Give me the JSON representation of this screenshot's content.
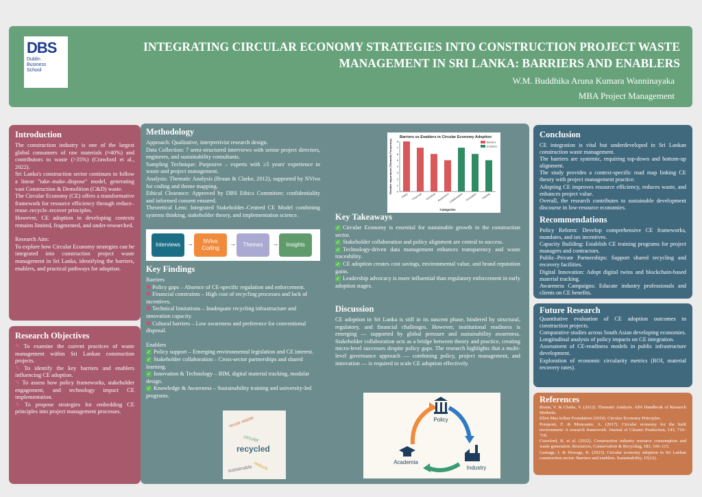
{
  "header": {
    "logo_text": "DBS",
    "logo_sub": [
      "Dublin",
      "Business",
      "School"
    ],
    "title_line1": "INTEGRATING CIRCULAR ECONOMY STRATEGIES INTO CONSTRUCTION PROJECT WASTE",
    "title_line2": "MANAGEMENT IN SRI LANKA: BARRIERS AND ENABLERS",
    "author": "W.M. Buddhika Aruna Kumara Wanninayaka",
    "degree": "MBA Project Management"
  },
  "introduction": {
    "title": "Introduction",
    "paragraphs": [
      "The construction industry is one of the largest global consumers of raw materials (≈40%) and contributors to waste (>35%) (Crawford et al., 2022).",
      "Sri Lanka's construction sector continues to follow a linear \"take–make–dispose\" model, generating vast Construction & Demolition (C&D) waste.",
      "The Circular Economy (CE) offers a transformative framework for resource efficiency through reduce–reuse–recycle–recover principles.",
      "However, CE adoption in developing contexts remains limited, fragmented, and under-researched."
    ],
    "aim_label": "Research Aim:",
    "aim": "To explore how Circular Economy strategies can be integrated into construction project waste management in Sri Lanka, identifying the barriers, enablers, and practical pathways for adoption."
  },
  "objectives": {
    "title": "Research Objectives",
    "items": [
      "To examine the current practices of waste management within Sri Lankan construction projects.",
      "To identify the key barriers and enablers influencing CE adoption.",
      "To assess how policy frameworks, stakeholder engagement, and technology impact CE implementation.",
      "To propose strategies for embedding CE principles into project management processes."
    ]
  },
  "methodology": {
    "title": "Methodology",
    "items": [
      "Approach: Qualitative, interpretivist research design.",
      "Data Collection: 7 semi-structured interviews with senior project directors, engineers, and sustainability consultants.",
      "Sampling Technique: Purposive – experts with ≥5 years' experience in waste and project management.",
      "Analysis: Thematic Analysis (Braun & Clarke, 2012), supported by NVivo for coding and theme mapping.",
      "Ethical Clearance: Approved by DBS Ethics Committee; confidentiality and informed consent ensured.",
      "Theoretical Lens: Integrated Stakeholder–Centred CE Model combining systems thinking, stakeholder theory, and implementation science."
    ],
    "flow": [
      {
        "label": "Interviews",
        "color": "#1b6e86"
      },
      {
        "label": "NVivo Coding",
        "color": "#f08a3c"
      },
      {
        "label": "Themes",
        "color": "#a9a9d2"
      },
      {
        "label": "Insights",
        "color": "#5f9b6b"
      }
    ]
  },
  "findings": {
    "title": "Key Findings",
    "barriers_label": "Barriers",
    "barriers": [
      "Policy gaps – Absence of CE-specific regulation and enforcement.",
      "Financial constraints – High cost of recycling processes and lack of incentives.",
      "Technical limitations – Inadequate recycling infrastructure and innovation capacity.",
      "Cultural barriers – Low awareness and preference for conventional disposal."
    ],
    "enablers_label": "Enablers",
    "enablers": [
      "Policy support – Emerging environmental legislation and CE interest.",
      "Stakeholder collaboration – Cross-sector partnerships and shared learning.",
      "Innovation & Technology – BIM, digital material tracking, modular design.",
      "Knowledge & Awareness – Sustainability training and university-led programs."
    ],
    "cloud_word": "recycled"
  },
  "chart_data": {
    "type": "bar",
    "title": "Barriers vs Enablers in Circular Economy Adoption",
    "xlabel": "Categories",
    "ylabel": "Relative Importance (Thematic Frequency)",
    "ylim": [
      0,
      8
    ],
    "yticks": [
      0,
      1,
      2,
      3,
      4,
      5,
      6,
      7,
      8
    ],
    "grid": false,
    "legend": "top-right",
    "categories": [
      "Policy",
      "Financial",
      "Technical",
      "Awareness",
      "Collaboration",
      "Innovation",
      "Training"
    ],
    "series": [
      {
        "name": "Barriers",
        "color": "#d9595a",
        "values": [
          8,
          7,
          6,
          5,
          null,
          null,
          null
        ]
      },
      {
        "name": "Enablers",
        "color": "#2e8b63",
        "values": [
          null,
          null,
          null,
          null,
          7,
          6,
          5
        ]
      }
    ]
  },
  "takeaways": {
    "title": "Key Takeaways",
    "items": [
      "Circular Economy is essential for sustainable growth in the construction sector.",
      "Stakeholder collaboration and policy alignment are central to success.",
      "Technology-driven data management enhances transparency and waste traceability.",
      "CE adoption creates cost savings, environmental value, and brand reputation gains.",
      "Leadership advocacy is more influential than regulatory enforcement in early adoption stages."
    ]
  },
  "discussion": {
    "title": "Discussion",
    "text": "CE adoption in Sri Lanka is still in its nascent phase, hindered by structural, regulatory, and financial challenges. However, institutional readiness is emerging — supported by global pressure and sustainability awareness. Stakeholder collaboration acts as a bridge between theory and practice, creating micro-level successes despite policy gaps. The research highlights that a multi-level governance approach — combining policy, project management, and innovation — is required to scale CE adoption effectively."
  },
  "cycle": {
    "nodes": [
      "Policy",
      "Industry",
      "Academia"
    ]
  },
  "conclusion": {
    "title": "Conclusion",
    "items": [
      "CE integration is vital but underdeveloped in Sri Lankan construction waste management.",
      "The barriers are systemic, requiring top-down and bottom-up alignment.",
      "The study provides a context-specific road map linking CE theory with project management practice.",
      "Adopting CE improves resource efficiency, reduces waste, and enhances project value.",
      "Overall, the research contributes to sustainable development discourse in low-resource economies."
    ]
  },
  "recommendations": {
    "title": "Recommendations",
    "items": [
      "Policy Reform: Develop comprehensive CE frameworks, mandates, and tax incentives.",
      "Capacity Building: Establish CE training programs for project managers and contractors.",
      "Public–Private Partnerships: Support shared recycling and recovery facilities.",
      "Digital Innovation: Adopt digital twins and blockchain-based material tracking.",
      "Awareness Campaigns: Educate industry professionals and clients on CE benefits."
    ]
  },
  "future": {
    "title": "Future Research",
    "items": [
      "Quantitative evaluation of CE adoption outcomes in construction projects.",
      "Comparative studies across South Asian developing economies.",
      "Longitudinal analysis of policy impacts on CE integration.",
      "Assessment of CE-readiness models in public infrastructure development.",
      "Exploration of economic circularity metrics (ROI, material recovery rates)."
    ]
  },
  "references": {
    "title": "References",
    "items": [
      "Braun, V. & Clarke, V. (2012). Thematic Analysis. APA Handbook of Research Methods.",
      "Ellen MacArthur Foundation (2019). Circular Economy Principles.",
      "Pomponi, F. & Moncaster, A. (2017). Circular economy for the built environment: A research framework. Journal of Cleaner Production, 143, 710–718.",
      "Crawford, R. et al. (2022). Construction industry resource consumption and waste generation. Resources, Conservation & Recycling, 183, 106–115.",
      "Gamage, I. & Hewage, K. (2023). Circular economy adoption in Sri Lankan construction sector: Barriers and enablers. Sustainability, 15(12)."
    ]
  }
}
